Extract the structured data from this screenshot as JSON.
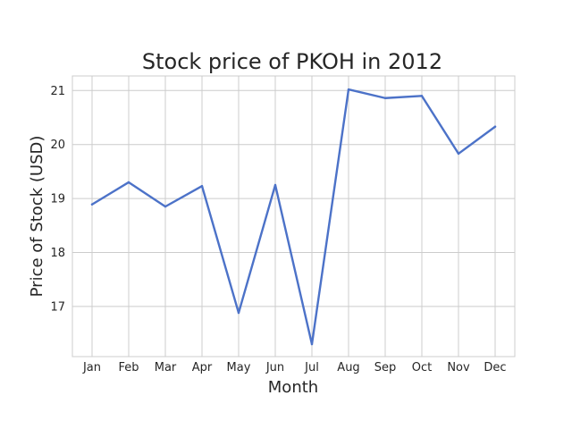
{
  "chart_data": {
    "type": "line",
    "title": "Stock price of PKOH in 2012",
    "xlabel": "Month",
    "ylabel": "Price of Stock (USD)",
    "categories": [
      "Jan",
      "Feb",
      "Mar",
      "Apr",
      "May",
      "Jun",
      "Jul",
      "Aug",
      "Sep",
      "Oct",
      "Nov",
      "Dec"
    ],
    "series": [
      {
        "values": [
          18.89,
          19.3,
          18.85,
          19.23,
          16.88,
          19.25,
          16.3,
          21.02,
          20.86,
          20.9,
          19.83,
          20.33
        ]
      }
    ],
    "yticks": [
      17,
      18,
      19,
      20,
      21
    ],
    "ylim": [
      16.07,
      21.27
    ],
    "grid": true,
    "line_color": "#4c72c8",
    "grid_color": "#cccccc",
    "spine_color": "#cccccc",
    "text_color": "#262626"
  }
}
